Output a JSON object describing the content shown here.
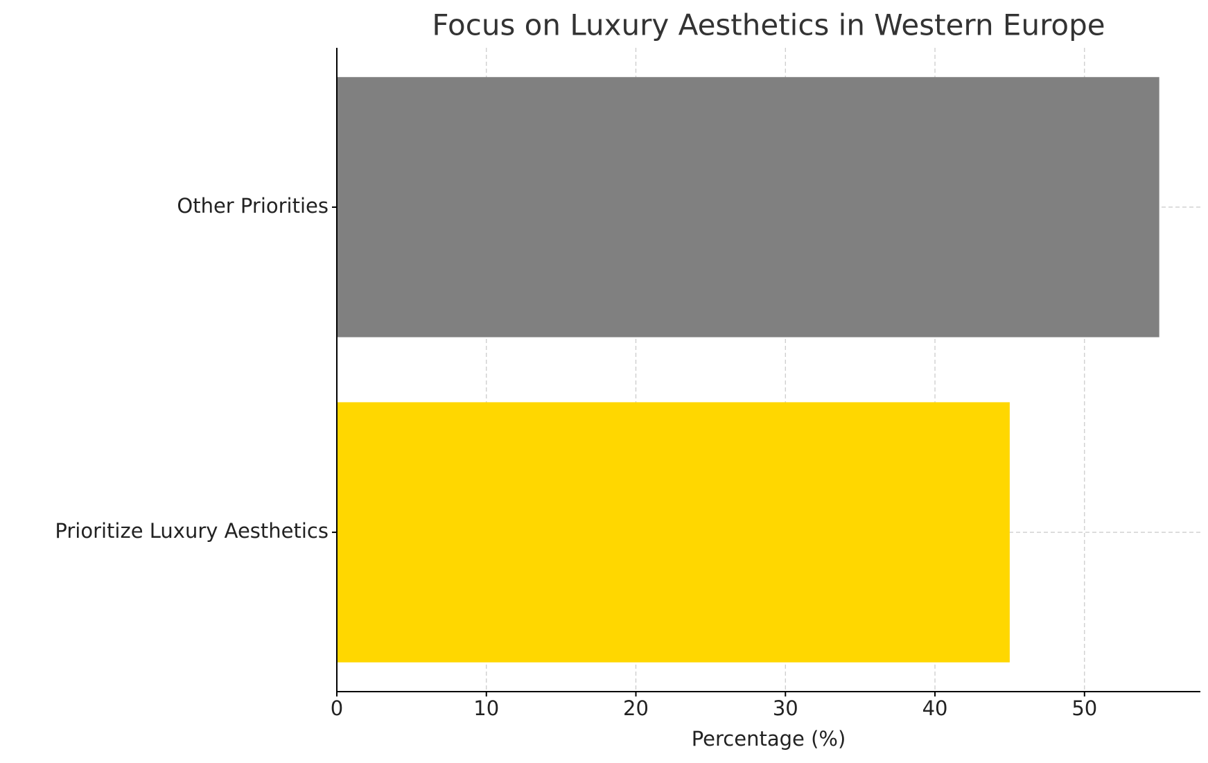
{
  "chart_data": {
    "type": "barh",
    "title": "Focus on Luxury Aesthetics in Western Europe",
    "categories": [
      "Prioritize Luxury Aesthetics",
      "Other Priorities"
    ],
    "values": [
      45,
      55
    ],
    "colors": [
      "#FFD700",
      "#808080"
    ],
    "xlabel": "Percentage (%)",
    "xlim": [
      0,
      57.75
    ],
    "xticks": [
      0,
      10,
      20,
      30,
      40,
      50
    ],
    "grid": true
  }
}
